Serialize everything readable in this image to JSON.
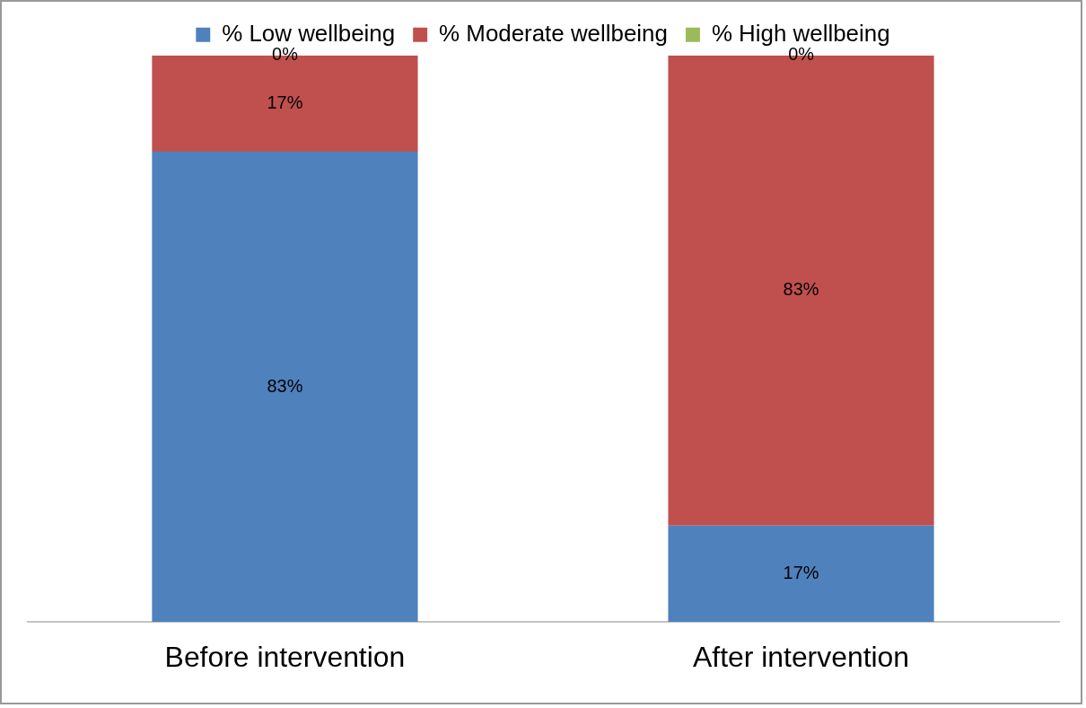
{
  "chart_data": {
    "type": "bar",
    "stacked": true,
    "categories": [
      "Before intervention",
      "After intervention"
    ],
    "series": [
      {
        "name": "% Low wellbeing",
        "color": "#4f81bd",
        "values": [
          83,
          17
        ],
        "value_labels": [
          "83%",
          "17%"
        ]
      },
      {
        "name": "% Moderate wellbeing",
        "color": "#c0504d",
        "values": [
          17,
          83
        ],
        "value_labels": [
          "17%",
          "83%"
        ]
      },
      {
        "name": "% High wellbeing",
        "color": "#9bbb59",
        "values": [
          0,
          0
        ],
        "value_labels": [
          "0%",
          "0%"
        ]
      }
    ],
    "legend": "top",
    "grid": false
  }
}
